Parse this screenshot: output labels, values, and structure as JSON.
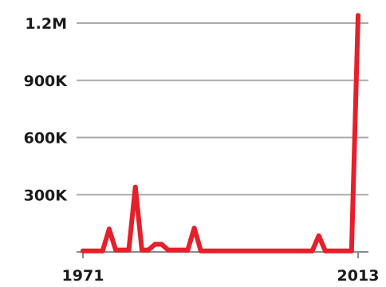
{
  "chart_data": {
    "type": "line",
    "title": "",
    "xlabel": "",
    "ylabel": "",
    "xlim": [
      1971,
      2013
    ],
    "ylim": [
      0,
      1200000
    ],
    "grid": "horizontal",
    "y_ticks": [
      {
        "value": 1200000,
        "label": "1.2M"
      },
      {
        "value": 900000,
        "label": "900K"
      },
      {
        "value": 600000,
        "label": "600K"
      },
      {
        "value": 300000,
        "label": "300K"
      }
    ],
    "x_ticks": [
      {
        "value": 1971,
        "label": "1971"
      },
      {
        "value": 2013,
        "label": "2013"
      }
    ],
    "series": [
      {
        "color": "#e5202a",
        "points": [
          [
            1971,
            5000
          ],
          [
            1974,
            5000
          ],
          [
            1975,
            120000
          ],
          [
            1976,
            10000
          ],
          [
            1978,
            10000
          ],
          [
            1979,
            340000
          ],
          [
            1980,
            10000
          ],
          [
            1981,
            10000
          ],
          [
            1982,
            40000
          ],
          [
            1983,
            40000
          ],
          [
            1984,
            10000
          ],
          [
            1987,
            10000
          ],
          [
            1988,
            125000
          ],
          [
            1989,
            5000
          ],
          [
            2006,
            5000
          ],
          [
            2007,
            85000
          ],
          [
            2008,
            5000
          ],
          [
            2011,
            5000
          ],
          [
            2012,
            5000
          ],
          [
            2013,
            1240000
          ]
        ]
      }
    ]
  }
}
